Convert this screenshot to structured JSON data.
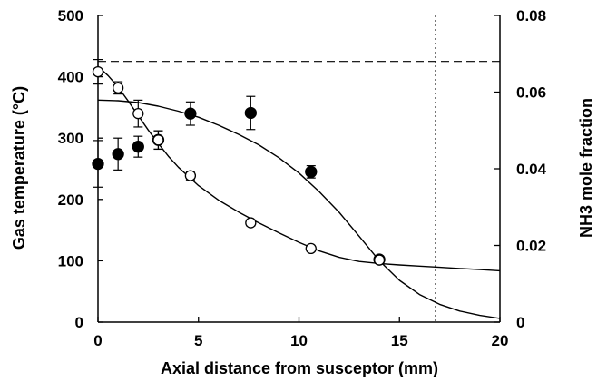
{
  "chart_data": {
    "type": "scatter",
    "xlabel": "Axial distance from susceptor (mm)",
    "ylabel_left": "Gas temperature (°C)",
    "ylabel_right": "NH3 mole fraction",
    "xlim": [
      0,
      20
    ],
    "ylim_left": [
      0,
      500
    ],
    "ylim_right": [
      0,
      0.08
    ],
    "x_ticks": [
      "0",
      "5",
      "10",
      "15",
      "20"
    ],
    "y_left_ticks": [
      "0",
      "100",
      "200",
      "300",
      "400",
      "500"
    ],
    "y_right_ticks": [
      "0",
      "0.02",
      "0.04",
      "0.06",
      "0.08"
    ],
    "grid": false,
    "legend": "none",
    "series": [
      {
        "marker": "filled-circle",
        "axis": "left",
        "points": [
          {
            "x": 0.0,
            "y": 258,
            "err": 38
          },
          {
            "x": 1.0,
            "y": 274,
            "err": 26
          },
          {
            "x": 2.0,
            "y": 286,
            "err": 17
          },
          {
            "x": 3.0,
            "y": 297,
            "err": 15
          },
          {
            "x": 4.6,
            "y": 340,
            "err": 19
          },
          {
            "x": 7.6,
            "y": 341,
            "err": 27
          },
          {
            "x": 10.6,
            "y": 245,
            "err": 10
          },
          {
            "x": 14.0,
            "y": 102,
            "err": 6
          }
        ]
      },
      {
        "marker": "open-circle",
        "axis": "right",
        "points": [
          {
            "x": 0.0,
            "y": 0.0653,
            "err": 0.0032
          },
          {
            "x": 1.0,
            "y": 0.0611,
            "err": 0.0016
          },
          {
            "x": 2.0,
            "y": 0.0544,
            "err": 0.0035
          },
          {
            "x": 3.0,
            "y": 0.0475,
            "err": 0.0024
          },
          {
            "x": 4.6,
            "y": 0.0382,
            "err": 0.0011
          },
          {
            "x": 7.6,
            "y": 0.0259,
            "err": 0.0008
          },
          {
            "x": 10.6,
            "y": 0.0192,
            "err": 0.0006
          },
          {
            "x": 14.0,
            "y": 0.0162,
            "err": 0.0006
          }
        ]
      }
    ],
    "curves": [
      {
        "style": "solid",
        "axis": "left",
        "x": [
          0,
          1,
          2,
          3,
          4,
          5,
          6,
          7,
          8,
          9,
          10,
          11,
          12,
          13,
          14,
          15,
          16,
          17,
          18,
          19,
          20
        ],
        "y": [
          362,
          361,
          358,
          352,
          344,
          334,
          321,
          306,
          289,
          268,
          243,
          213,
          179,
          140,
          100,
          68,
          45,
          29,
          18,
          11,
          6
        ]
      },
      {
        "style": "solid",
        "axis": "right",
        "x": [
          0,
          0.5,
          1,
          1.5,
          2,
          2.5,
          3,
          3.5,
          4,
          5,
          6,
          7,
          8,
          9,
          10,
          11,
          12,
          13,
          14,
          15,
          16,
          17,
          18,
          19,
          20
        ],
        "y": [
          0.0667,
          0.0643,
          0.0613,
          0.0577,
          0.0539,
          0.0501,
          0.0466,
          0.0433,
          0.0404,
          0.0356,
          0.0318,
          0.0287,
          0.0259,
          0.0233,
          0.0208,
          0.0186,
          0.0169,
          0.0158,
          0.0153,
          0.0149,
          0.0146,
          0.0143,
          0.014,
          0.0137,
          0.0134
        ]
      }
    ],
    "reference_lines": [
      {
        "orientation": "horizontal",
        "style": "dashed",
        "axis": "left",
        "value": 425
      },
      {
        "orientation": "vertical",
        "style": "dotted",
        "value": 16.8
      }
    ]
  }
}
